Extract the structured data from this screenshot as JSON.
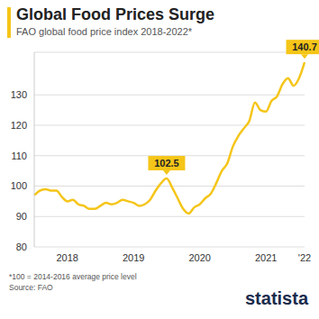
{
  "chart_data": {
    "type": "line",
    "title": "Global Food Prices Surge",
    "subtitle": "FAO global food price index 2018-2022*",
    "footnote": "*100 = 2014-2016 average price level",
    "source": "Source: FAO",
    "brand": "statista",
    "categories": [
      null,
      null,
      null,
      null,
      null,
      null,
      "2018",
      null,
      null,
      null,
      null,
      null,
      null,
      null,
      null,
      null,
      null,
      null,
      "2019",
      null,
      null,
      null,
      null,
      null,
      null,
      null,
      null,
      null,
      null,
      null,
      "2020",
      null,
      null,
      null,
      null,
      null,
      null,
      null,
      null,
      null,
      null,
      null,
      "2021",
      null,
      null,
      null,
      null,
      null,
      null,
      "'22"
    ],
    "values": [
      97.0,
      98.5,
      99.0,
      98.5,
      98.5,
      96.5,
      95.0,
      95.5,
      94.0,
      93.5,
      92.5,
      92.5,
      93.5,
      94.5,
      94.0,
      94.5,
      95.5,
      95.0,
      94.5,
      93.5,
      94.0,
      95.5,
      98.5,
      101.0,
      102.5,
      99.5,
      96.0,
      92.5,
      91.0,
      93.0,
      94.0,
      96.0,
      97.5,
      101.0,
      105.0,
      107.5,
      113.0,
      116.5,
      119.0,
      121.5,
      127.5,
      125.0,
      124.5,
      128.0,
      129.5,
      133.5,
      135.5,
      133.0,
      135.5,
      140.7
    ],
    "annotations": [
      {
        "text": "102.5"
      },
      {
        "text": "140.7"
      }
    ],
    "color": "#f5c518",
    "ylim": [
      80,
      144
    ],
    "yticks": [
      80,
      90,
      100,
      110,
      120,
      130
    ],
    "grid": true
  }
}
